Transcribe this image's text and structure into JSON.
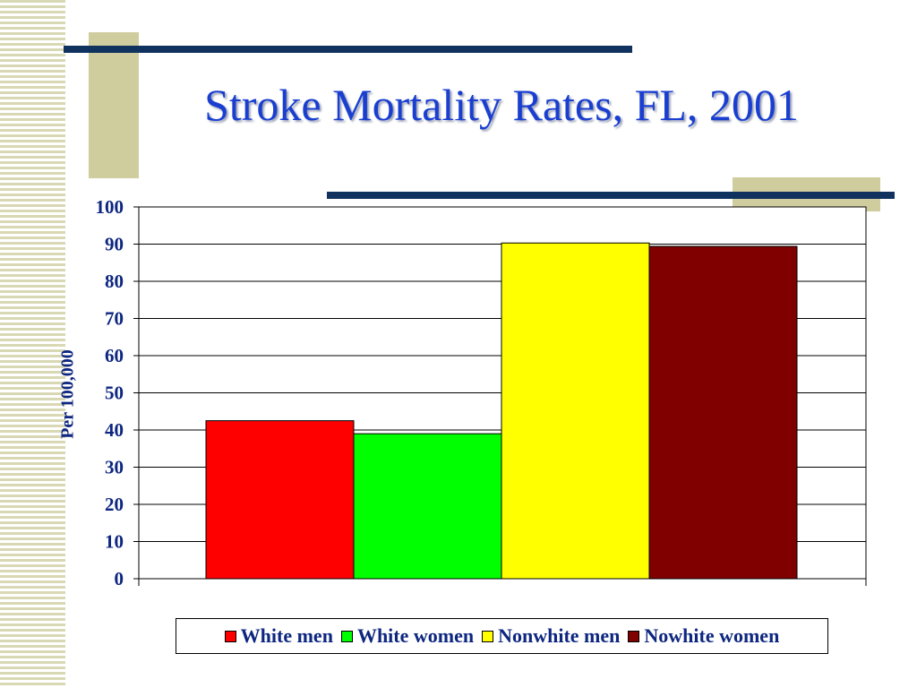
{
  "slide": {
    "title": "Stroke Mortality Rates, FL, 2001"
  },
  "chart_data": {
    "type": "bar",
    "title": "",
    "xlabel": "",
    "ylabel": "Per 100,000",
    "ylim": [
      0,
      100
    ],
    "yticks": [
      0,
      10,
      20,
      30,
      40,
      50,
      60,
      70,
      80,
      90,
      100
    ],
    "grid": true,
    "legend_position": "bottom",
    "categories": [
      "White men",
      "White women",
      "Nonwhite men",
      "Nowhite women"
    ],
    "values": [
      42.5,
      39,
      90.3,
      89.4
    ],
    "colors": [
      "#ff0000",
      "#00ff00",
      "#ffff00",
      "#800000"
    ]
  }
}
